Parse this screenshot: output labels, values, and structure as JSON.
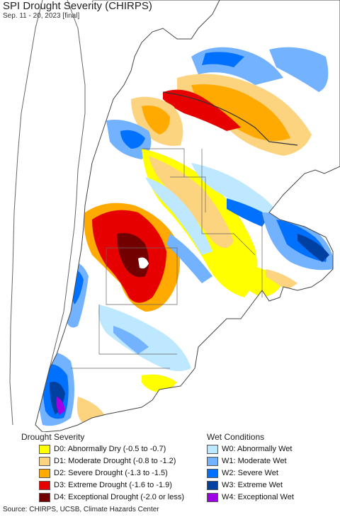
{
  "title": "SPI Drought Severity (CHIRPS)",
  "subtitle": "Sep. 11 - 20, 2023 [final]",
  "legend": {
    "drought_title": "Drought Severity",
    "wet_title": "Wet Conditions",
    "drought": [
      {
        "label": "D0: Abnormally Dry (-0.5 to -0.7)",
        "color": "#ffff00"
      },
      {
        "label": "D1: Moderate Drought (-0.8 to -1.2)",
        "color": "#fcd37f"
      },
      {
        "label": "D2: Severe Drought (-1.3 to -1.5)",
        "color": "#ffaa00"
      },
      {
        "label": "D3: Extreme Drought (-1.6 to -1.9)",
        "color": "#e60000"
      },
      {
        "label": "D4: Exceptional Drought (-2.0 or less)",
        "color": "#730000"
      }
    ],
    "wet": [
      {
        "label": "W0: Abnormally Wet",
        "color": "#bee8ff"
      },
      {
        "label": "W1: Moderate Wet",
        "color": "#73b2ff"
      },
      {
        "label": "W2: Severe Wet",
        "color": "#0070ff"
      },
      {
        "label": "W3: Extreme Wet",
        "color": "#0040a0"
      },
      {
        "label": "W4: Exceptional Wet",
        "color": "#a000e6"
      }
    ]
  },
  "source": "Source: CHIRPS, UCSB, Climate Hazards Center",
  "colors": {
    "background": "#ffffff",
    "land": "#ffffff",
    "border": "#555555"
  }
}
